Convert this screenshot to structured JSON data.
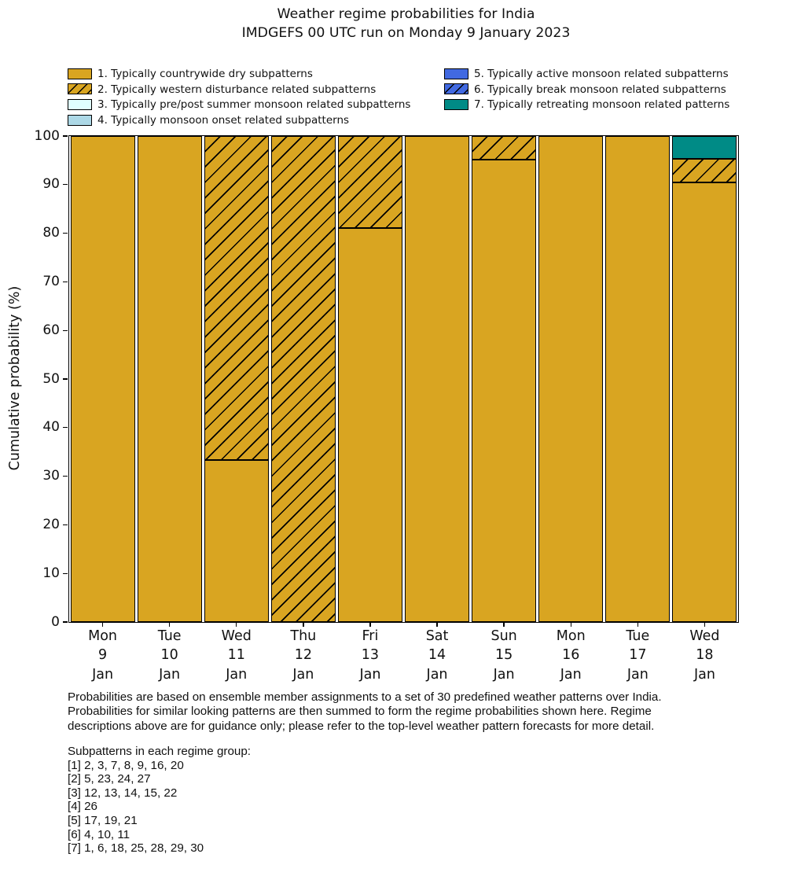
{
  "title": {
    "line1": "Weather regime probabilities for India",
    "line2": "IMDGEFS 00 UTC run on Monday 9 January 2023"
  },
  "chart_data": {
    "type": "bar",
    "stacked": true,
    "title": "Weather regime probabilities for India",
    "subtitle": "IMDGEFS 00 UTC run on Monday 9 January 2023",
    "xlabel": "",
    "ylabel": "Cumulative probability (%)",
    "ylim": [
      0,
      100
    ],
    "yticks": [
      0,
      10,
      20,
      30,
      40,
      50,
      60,
      70,
      80,
      90,
      100
    ],
    "grid": false,
    "legend_position": "top, two columns, no frame",
    "edge_color": "#000000",
    "regimes": [
      {
        "id": 1,
        "label": "1. Typically countrywide dry subpatterns",
        "color": "#D9A521",
        "hatch": false
      },
      {
        "id": 2,
        "label": "2. Typically western disturbance related subpatterns",
        "color": "#D9A521",
        "hatch": true
      },
      {
        "id": 3,
        "label": "3. Typically pre/post summer monsoon related subpatterns",
        "color": "#E0FFFF",
        "hatch": false
      },
      {
        "id": 4,
        "label": "4. Typically monsoon onset related subpatterns",
        "color": "#ADD8E6",
        "hatch": false
      },
      {
        "id": 5,
        "label": "5. Typically active monsoon related subpatterns",
        "color": "#4169E1",
        "hatch": false
      },
      {
        "id": 6,
        "label": "6. Typically break monsoon related subpatterns",
        "color": "#4169E1",
        "hatch": true
      },
      {
        "id": 7,
        "label": "7. Typically retreating monsoon related patterns",
        "color": "#008B86",
        "hatch": false
      }
    ],
    "legend_columns": [
      [
        1,
        2,
        3,
        4
      ],
      [
        5,
        6,
        7
      ]
    ],
    "categories": [
      [
        "Mon",
        "9",
        "Jan"
      ],
      [
        "Tue",
        "10",
        "Jan"
      ],
      [
        "Wed",
        "11",
        "Jan"
      ],
      [
        "Thu",
        "12",
        "Jan"
      ],
      [
        "Fri",
        "13",
        "Jan"
      ],
      [
        "Sat",
        "14",
        "Jan"
      ],
      [
        "Sun",
        "15",
        "Jan"
      ],
      [
        "Mon",
        "16",
        "Jan"
      ],
      [
        "Tue",
        "17",
        "Jan"
      ],
      [
        "Wed",
        "18",
        "Jan"
      ]
    ],
    "bars": [
      {
        "segments": [
          {
            "regime": 1,
            "value": 100
          }
        ]
      },
      {
        "segments": [
          {
            "regime": 1,
            "value": 100
          }
        ]
      },
      {
        "segments": [
          {
            "regime": 1,
            "value": 33.3
          },
          {
            "regime": 2,
            "value": 66.7
          }
        ]
      },
      {
        "segments": [
          {
            "regime": 2,
            "value": 100
          }
        ]
      },
      {
        "segments": [
          {
            "regime": 1,
            "value": 81.0
          },
          {
            "regime": 2,
            "value": 19.0
          }
        ]
      },
      {
        "segments": [
          {
            "regime": 1,
            "value": 100
          }
        ]
      },
      {
        "segments": [
          {
            "regime": 1,
            "value": 95.2
          },
          {
            "regime": 2,
            "value": 4.8
          }
        ]
      },
      {
        "segments": [
          {
            "regime": 1,
            "value": 100
          }
        ]
      },
      {
        "segments": [
          {
            "regime": 1,
            "value": 100
          }
        ]
      },
      {
        "segments": [
          {
            "regime": 1,
            "value": 90.5
          },
          {
            "regime": 2,
            "value": 4.8
          },
          {
            "regime": 7,
            "value": 4.7
          }
        ]
      }
    ]
  },
  "footer": {
    "lines": [
      "Probabilities are based on ensemble member assignments to a set of 30 predefined weather patterns over India.",
      "Probabilities for similar looking patterns are then summed to form the regime probabilities shown here. Regime",
      "descriptions above are for guidance only; please refer to the top-level weather pattern forecasts for more detail."
    ]
  },
  "subpatterns": {
    "heading": "Subpatterns in each regime group:",
    "lines": [
      "[1] 2, 3, 7, 8, 9, 16, 20",
      "[2] 5, 23, 24, 27",
      "[3] 12, 13, 14, 15, 22",
      "[4] 26",
      "[5] 17, 19, 21",
      "[6] 4, 10, 11",
      "[7] 1, 6, 18, 25, 28, 29, 30"
    ]
  }
}
